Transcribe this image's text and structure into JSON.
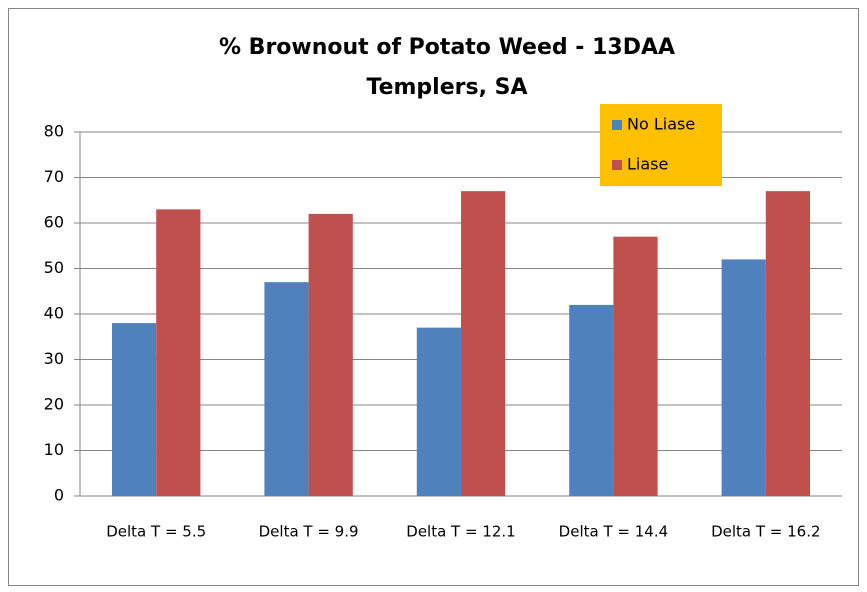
{
  "chart_data": {
    "type": "bar",
    "title": [
      "% Brownout of Potato Weed - 13DAA",
      "Templers, SA"
    ],
    "categories": [
      "Delta T = 5.5",
      "Delta T = 9.9",
      "Delta T = 12.1",
      "Delta T = 14.4",
      "Delta T = 16.2"
    ],
    "series": [
      {
        "name": "No Liase",
        "color": "#4F81BD",
        "values": [
          38,
          47,
          37,
          42,
          52
        ]
      },
      {
        "name": "Liase",
        "color": "#C0504D",
        "values": [
          63,
          62,
          67,
          57,
          67
        ]
      }
    ],
    "ylim": [
      0,
      80
    ],
    "yticks": [
      0,
      10,
      20,
      30,
      40,
      50,
      60,
      70,
      80
    ],
    "grid": true,
    "legend": {
      "position": "top-right",
      "background": "#FFC000"
    }
  }
}
